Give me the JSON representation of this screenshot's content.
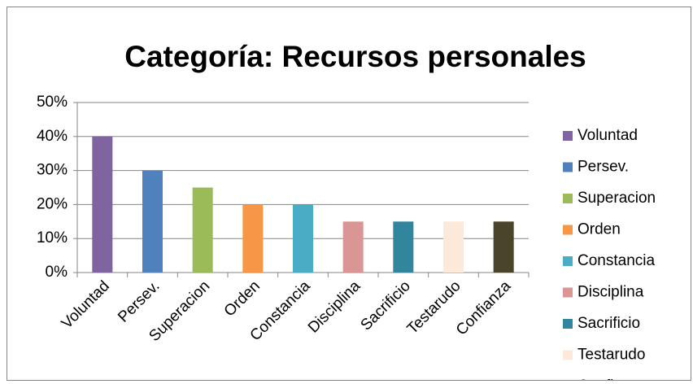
{
  "chart_data": {
    "type": "bar",
    "title": "Categoría: Recursos personales",
    "categories": [
      "Voluntad",
      "Persev.",
      "Superacion",
      "Orden",
      "Constancia",
      "Disciplina",
      "Sacrificio",
      "Testarudo",
      "Confianza"
    ],
    "values": [
      40,
      30,
      25,
      20,
      20,
      15,
      15,
      15,
      15
    ],
    "colors": [
      "#8064a2",
      "#4f81bd",
      "#9bbb59",
      "#f79646",
      "#4bacc6",
      "#d99694",
      "#31859c",
      "#fde9d9",
      "#4a452a"
    ],
    "ylim": [
      0,
      50
    ],
    "yticks": [
      {
        "value": 0,
        "label": "0%"
      },
      {
        "value": 10,
        "label": "10%"
      },
      {
        "value": 20,
        "label": "20%"
      },
      {
        "value": 30,
        "label": "30%"
      },
      {
        "value": 40,
        "label": "40%"
      },
      {
        "value": 50,
        "label": "50%"
      }
    ],
    "grid": true,
    "legend": "right"
  }
}
